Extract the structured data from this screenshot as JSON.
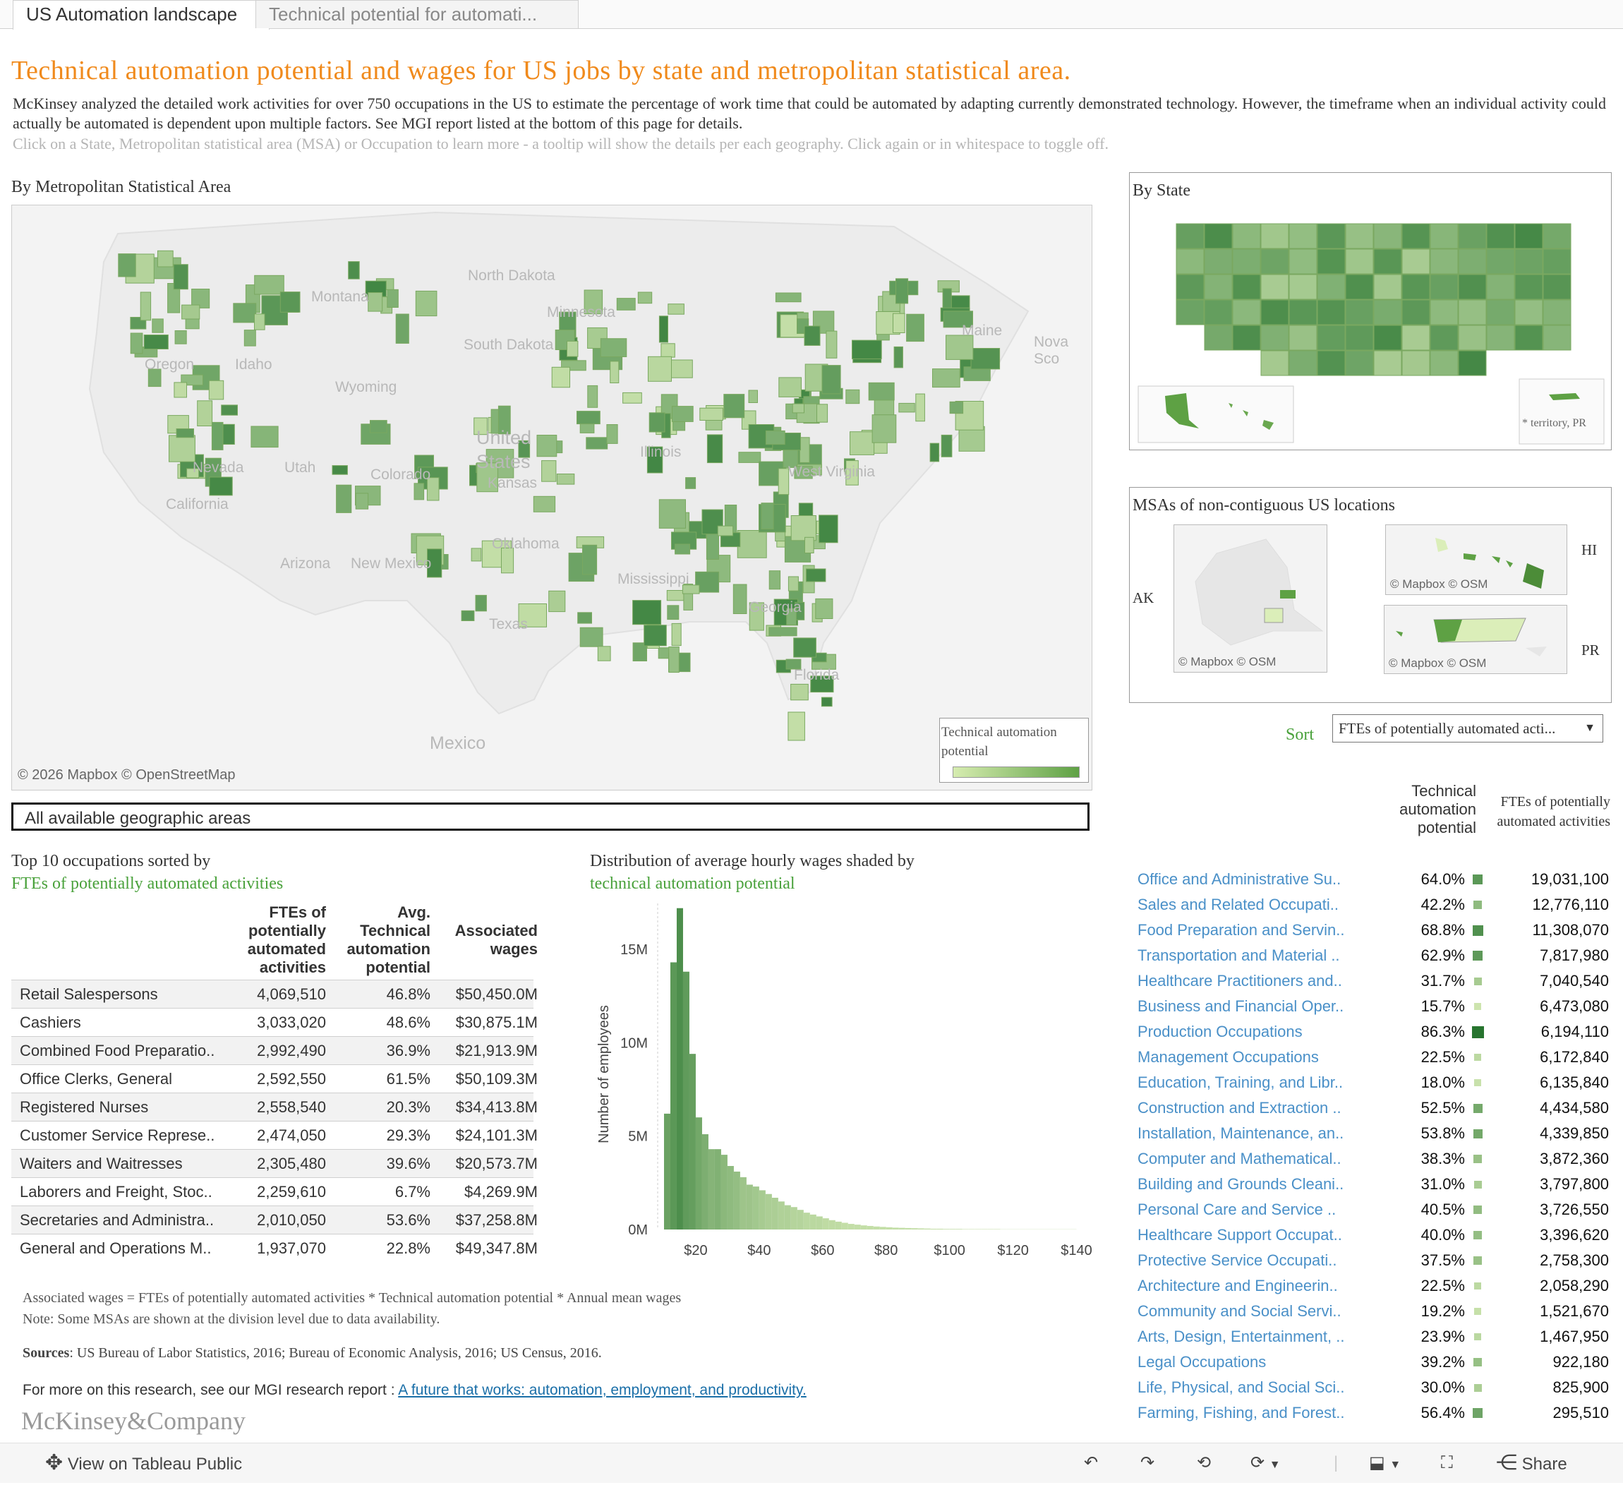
{
  "tabs": [
    {
      "label": "US Automation landscape",
      "active": true
    },
    {
      "label": "Technical potential for automati..."
    }
  ],
  "headline": "Technical automation potential and wages for US jobs by state and metropolitan statistical area.",
  "intro": "McKinsey analyzed the detailed work activities for over 750 occupations in the US to estimate the percentage of work time that could be automated by adapting currently demonstrated technology.  However, the timeframe when an individual activity could actually be automated is dependent upon multiple factors.  See MGI report listed at the bottom of this page for details.",
  "hint": "Click on a State, Metropolitan statistical area (MSA) or Occupation to learn more - a tooltip will show the details per each geography. Click again or in whitespace to toggle off.",
  "msa_map": {
    "title": "By Metropolitan Statistical Area",
    "place_labels": [
      "Montana",
      "North Dakota",
      "Minnesota",
      "South Dakota",
      "Wyoming",
      "Idaho",
      "Oregon",
      "Nevada",
      "Utah",
      "Colorado",
      "Kansas",
      "California",
      "Arizona",
      "New Mexico",
      "Oklahoma",
      "Texas",
      "United States",
      "Mexico",
      "Maine",
      "Nova Sco",
      "Mississippi",
      "Georgia",
      "Florida",
      "Illinois",
      "West Virginia"
    ],
    "legend_title": "Technical automation potential",
    "legend_colors": [
      "#d6ecb0",
      "#5ea144"
    ],
    "credit": "© 2026 Mapbox  © OpenStreetMap"
  },
  "geo_filter": "All available geographic areas",
  "top10": {
    "title_line1": "Top 10 occupations sorted by",
    "title_line2": "FTEs of potentially automated activities",
    "headers": [
      "FTEs of potentially automated activities",
      "Avg. Technical automation potential",
      "Associated wages"
    ],
    "rows": [
      {
        "name": "Retail Salespersons",
        "ftes": "4,069,510",
        "potential": "46.8%",
        "wages": "$50,450.0M"
      },
      {
        "name": "Cashiers",
        "ftes": "3,033,020",
        "potential": "48.6%",
        "wages": "$30,875.1M"
      },
      {
        "name": "Combined Food Preparatio..",
        "ftes": "2,992,490",
        "potential": "36.9%",
        "wages": "$21,913.9M"
      },
      {
        "name": "Office Clerks, General",
        "ftes": "2,592,550",
        "potential": "61.5%",
        "wages": "$50,109.3M"
      },
      {
        "name": "Registered Nurses",
        "ftes": "2,558,540",
        "potential": "20.3%",
        "wages": "$34,413.8M"
      },
      {
        "name": "Customer Service Represe..",
        "ftes": "2,474,050",
        "potential": "29.3%",
        "wages": "$24,101.3M"
      },
      {
        "name": "Waiters and Waitresses",
        "ftes": "2,305,480",
        "potential": "39.6%",
        "wages": "$20,573.7M"
      },
      {
        "name": "Laborers and Freight, Stoc..",
        "ftes": "2,259,610",
        "potential": "6.7%",
        "wages": "$4,269.9M"
      },
      {
        "name": "Secretaries and Administra..",
        "ftes": "2,010,050",
        "potential": "53.6%",
        "wages": "$37,258.8M"
      },
      {
        "name": "General and Operations M..",
        "ftes": "1,937,070",
        "potential": "22.8%",
        "wages": "$49,347.8M"
      }
    ]
  },
  "histogram": {
    "title_line1": "Distribution of average hourly wages shaded by",
    "title_line2": "technical automation potential"
  },
  "chart_data": {
    "type": "bar",
    "ylabel": "Number of employees",
    "x_ticks": [
      "$20",
      "$40",
      "$60",
      "$80",
      "$100",
      "$120",
      "$140"
    ],
    "y_ticks": [
      "0M",
      "5M",
      "10M",
      "15M"
    ],
    "xlim": [
      8,
      145
    ],
    "ylim": [
      0,
      17
    ],
    "bin_width": 2,
    "bin_starts": [
      10,
      12,
      14,
      16,
      18,
      20,
      22,
      24,
      26,
      28,
      30,
      32,
      34,
      36,
      38,
      40,
      42,
      44,
      46,
      48,
      50,
      52,
      54,
      56,
      58,
      60,
      62,
      64,
      66,
      68,
      70,
      72,
      74,
      76,
      78,
      80,
      82,
      84,
      86,
      88,
      90,
      92,
      94,
      96,
      98,
      100,
      102,
      104,
      106,
      108,
      110,
      112,
      114,
      116,
      118,
      120,
      122,
      124,
      126,
      128,
      130,
      132,
      134,
      136,
      138
    ],
    "values": [
      6.2,
      14.3,
      17.2,
      13.8,
      9.4,
      6.0,
      5.1,
      4.3,
      4.3,
      4.0,
      3.4,
      3.1,
      2.8,
      2.4,
      2.3,
      2.1,
      1.9,
      1.7,
      1.5,
      1.3,
      1.2,
      1.05,
      0.9,
      0.8,
      0.7,
      0.6,
      0.5,
      0.42,
      0.36,
      0.3,
      0.26,
      0.22,
      0.19,
      0.16,
      0.14,
      0.12,
      0.1,
      0.09,
      0.08,
      0.07,
      0.06,
      0.05,
      0.04,
      0.04,
      0.03,
      0.03,
      0.03,
      0.02,
      0.02,
      0.02,
      0.02,
      0.02,
      0.02,
      0.01,
      0.01,
      0.01,
      0.01,
      0.01,
      0.01,
      0.01,
      0.01,
      0.01,
      0.01,
      0.01,
      0.01
    ],
    "automation_potential": [
      0.58,
      0.64,
      0.7,
      0.62,
      0.6,
      0.54,
      0.5,
      0.46,
      0.48,
      0.44,
      0.42,
      0.4,
      0.36,
      0.36,
      0.34,
      0.32,
      0.3,
      0.3,
      0.28,
      0.28,
      0.26,
      0.26,
      0.24,
      0.24,
      0.24,
      0.22,
      0.22,
      0.22,
      0.2,
      0.2,
      0.2,
      0.2,
      0.2,
      0.2,
      0.2,
      0.2,
      0.2,
      0.2,
      0.2,
      0.2,
      0.2,
      0.2,
      0.2,
      0.2,
      0.2,
      0.2,
      0.2,
      0.2,
      0.2,
      0.2,
      0.2,
      0.2,
      0.2,
      0.2,
      0.2,
      0.2,
      0.2,
      0.2,
      0.2,
      0.2,
      0.2,
      0.2,
      0.2,
      0.2,
      0.2
    ]
  },
  "notes": {
    "formula": "Associated wages = FTEs of potentially automated activities * Technical automation potential * Annual mean wages",
    "msa_note": "Note: Some MSAs are shown at the division level due to data availability.",
    "sources_label": "Sources",
    "sources_text": ": US Bureau of Labor Statistics, 2016; Bureau of Economic Analysis, 2016; US Census, 2016.",
    "more_text": "For more on this research, see our MGI research report : ",
    "more_link": "A future that works: automation, employment, and productivity.",
    "logo": "McKinsey&Company"
  },
  "state_map": {
    "title": "By State",
    "territory_note": "* territory, PR"
  },
  "noncontig": {
    "title": "MSAs of non-contiguous US locations",
    "labels": [
      "AK",
      "HI",
      "PR"
    ],
    "credit": "© Mapbox  © OSM"
  },
  "sort": {
    "label": "Sort",
    "selected": "FTEs of potentially automated acti..."
  },
  "occupations": {
    "header_potential": "Technical automation potential",
    "header_ftes": "FTEs of potentially automated activities",
    "rows": [
      {
        "name": "Office and Administrative Su..",
        "pct": "64.0%",
        "ftes": "19,031,100",
        "level": 0.64
      },
      {
        "name": "Sales and Related Occupati..",
        "pct": "42.2%",
        "ftes": "12,776,110",
        "level": 0.42
      },
      {
        "name": "Food Preparation and Servin..",
        "pct": "68.8%",
        "ftes": "11,308,070",
        "level": 0.69
      },
      {
        "name": "Transportation and Material ..",
        "pct": "62.9%",
        "ftes": "7,817,980",
        "level": 0.63
      },
      {
        "name": "Healthcare Practitioners and..",
        "pct": "31.7%",
        "ftes": "7,040,540",
        "level": 0.32
      },
      {
        "name": "Business and Financial Oper..",
        "pct": "15.7%",
        "ftes": "6,473,080",
        "level": 0.16
      },
      {
        "name": "Production Occupations",
        "pct": "86.3%",
        "ftes": "6,194,110",
        "level": 0.86
      },
      {
        "name": "Management Occupations",
        "pct": "22.5%",
        "ftes": "6,172,840",
        "level": 0.23
      },
      {
        "name": "Education, Training, and Libr..",
        "pct": "18.0%",
        "ftes": "6,135,840",
        "level": 0.18
      },
      {
        "name": "Construction and Extraction ..",
        "pct": "52.5%",
        "ftes": "4,434,580",
        "level": 0.53
      },
      {
        "name": "Installation, Maintenance, an..",
        "pct": "53.8%",
        "ftes": "4,339,850",
        "level": 0.54
      },
      {
        "name": "Computer and Mathematical..",
        "pct": "38.3%",
        "ftes": "3,872,360",
        "level": 0.38
      },
      {
        "name": "Building and Grounds Cleani..",
        "pct": "31.0%",
        "ftes": "3,797,800",
        "level": 0.31
      },
      {
        "name": "Personal Care and Service ..",
        "pct": "40.5%",
        "ftes": "3,726,550",
        "level": 0.41
      },
      {
        "name": "Healthcare Support Occupat..",
        "pct": "40.0%",
        "ftes": "3,396,620",
        "level": 0.4
      },
      {
        "name": "Protective Service Occupati..",
        "pct": "37.5%",
        "ftes": "2,758,300",
        "level": 0.38
      },
      {
        "name": "Architecture and Engineerin..",
        "pct": "22.5%",
        "ftes": "2,058,290",
        "level": 0.23
      },
      {
        "name": "Community and Social Servi..",
        "pct": "19.2%",
        "ftes": "1,521,670",
        "level": 0.19
      },
      {
        "name": "Arts, Design, Entertainment, ..",
        "pct": "23.9%",
        "ftes": "1,467,950",
        "level": 0.24
      },
      {
        "name": "Legal Occupations",
        "pct": "39.2%",
        "ftes": "922,180",
        "level": 0.39
      },
      {
        "name": "Life, Physical, and Social Sci..",
        "pct": "30.0%",
        "ftes": "825,900",
        "level": 0.3
      },
      {
        "name": "Farming, Fishing, and Forest..",
        "pct": "56.4%",
        "ftes": "295,510",
        "level": 0.56
      }
    ]
  },
  "toolbar": {
    "view_label": "View on Tableau Public",
    "share_label": "Share",
    "icons": [
      "undo-icon",
      "redo-icon",
      "revert-icon",
      "refresh-icon",
      "download-icon",
      "fullscreen-icon",
      "share-icon"
    ]
  }
}
